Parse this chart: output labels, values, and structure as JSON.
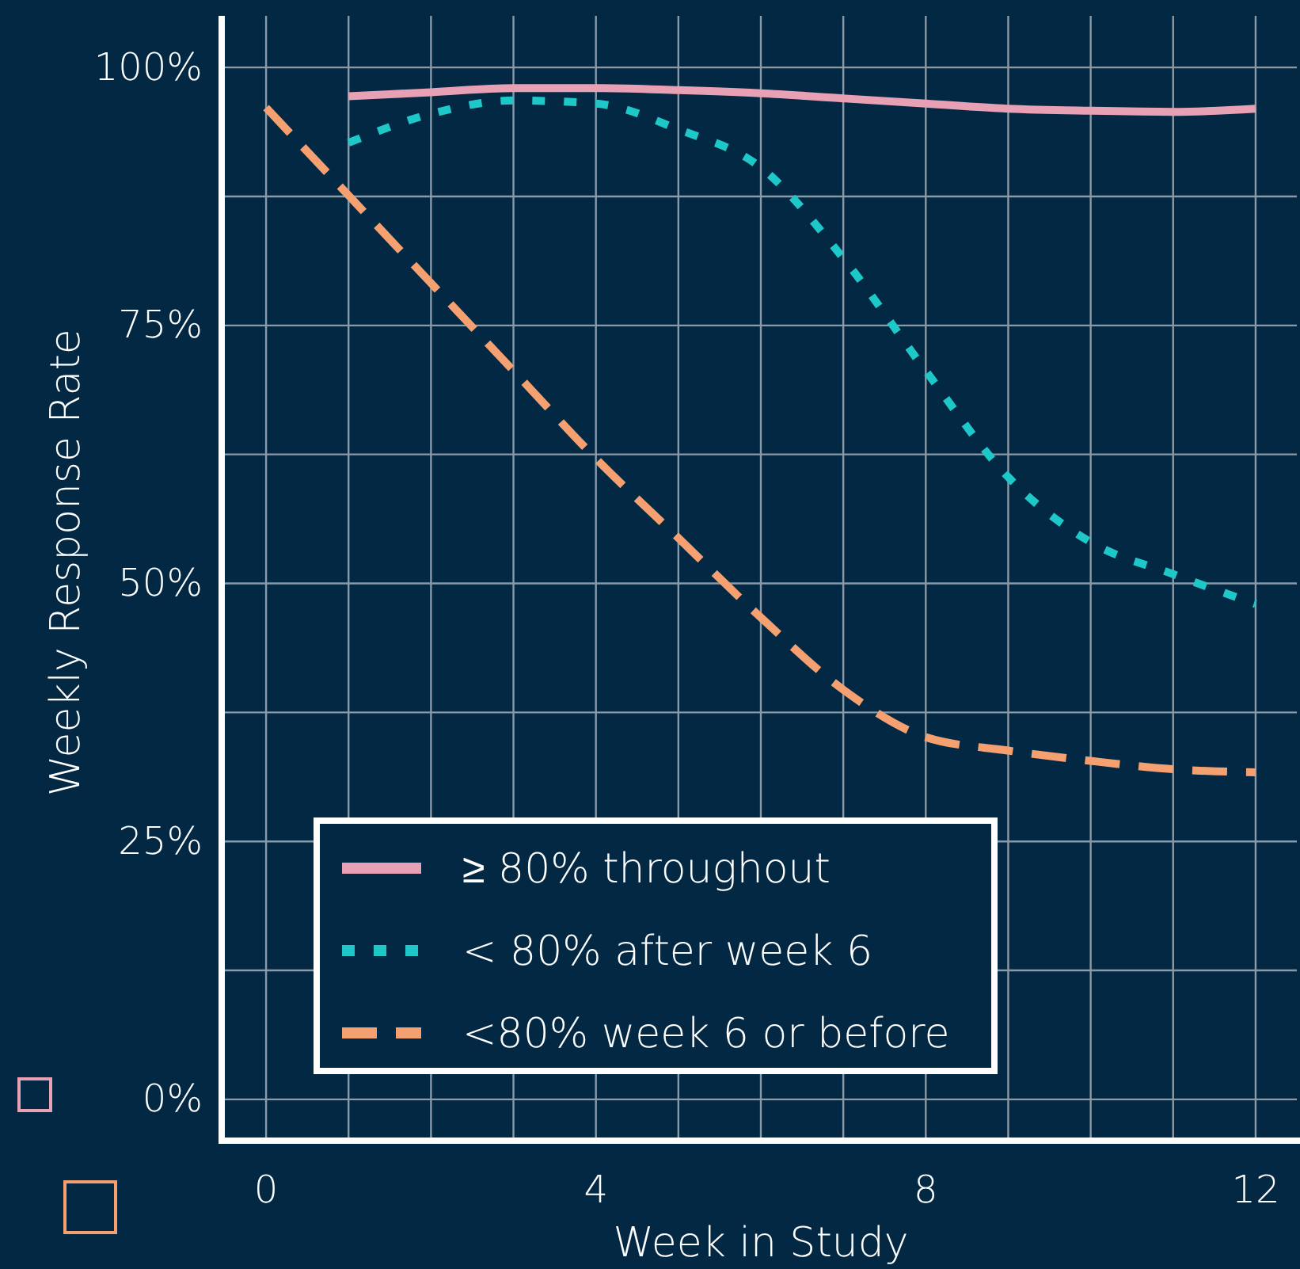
{
  "chart_data": {
    "type": "line",
    "xlabel": "Week in Study",
    "ylabel": "Weekly Response Rate",
    "xlim": [
      -0.5,
      12.5
    ],
    "ylim": [
      -4,
      105
    ],
    "xticks": [
      0,
      {
        "value": 1,
        "label": null
      },
      {
        "value": 2,
        "label": null
      },
      {
        "value": 3,
        "label": null
      },
      4,
      {
        "value": 5,
        "label": null
      },
      {
        "value": 6,
        "label": null
      },
      {
        "value": 7,
        "label": null
      },
      8,
      {
        "value": 9,
        "label": null
      },
      {
        "value": 10,
        "label": null
      },
      {
        "value": 11,
        "label": null
      },
      12
    ],
    "yticks": [
      {
        "value": 0,
        "label": "0%"
      },
      {
        "value": 12.5,
        "label": null
      },
      {
        "value": 25,
        "label": "25%"
      },
      {
        "value": 37.5,
        "label": null
      },
      {
        "value": 50,
        "label": "50%"
      },
      {
        "value": 62.5,
        "label": null
      },
      {
        "value": 75,
        "label": "75%"
      },
      {
        "value": 87.5,
        "label": null
      },
      {
        "value": 100,
        "label": "100%"
      }
    ],
    "grid": true,
    "legend": "bottom left",
    "marker": "none",
    "series": [
      {
        "name": "≥ 80% throughout",
        "color": "#e8a0b4",
        "line_style": "solid",
        "x": [
          1,
          2,
          3,
          4,
          5,
          6,
          7,
          8,
          9,
          10,
          11,
          12
        ],
        "values": [
          97.2,
          97.6,
          98,
          98,
          97.8,
          97.5,
          97,
          96.5,
          96,
          95.8,
          95.7,
          96
        ]
      },
      {
        "name": "< 80% after week 6",
        "color": "#1ec8c8",
        "line_style": "dotted",
        "x": [
          1,
          2,
          3,
          4,
          5,
          6,
          7,
          8,
          9,
          10,
          11,
          12
        ],
        "values": [
          92.7,
          95.5,
          96.8,
          96.5,
          94,
          90.3,
          81.5,
          70.6,
          60.3,
          54,
          50.9,
          48
        ]
      },
      {
        "name": "<80% week 6 or before",
        "color": "#f4a070",
        "line_style": "dashed",
        "x": [
          0,
          1,
          2,
          3,
          4,
          5,
          6,
          7,
          8,
          9,
          10,
          11,
          12
        ],
        "values": [
          96.1,
          87.6,
          79.1,
          70.6,
          62.1,
          54.4,
          46.7,
          39.7,
          35.1,
          33.8,
          32.8,
          32,
          31.7
        ]
      }
    ]
  }
}
